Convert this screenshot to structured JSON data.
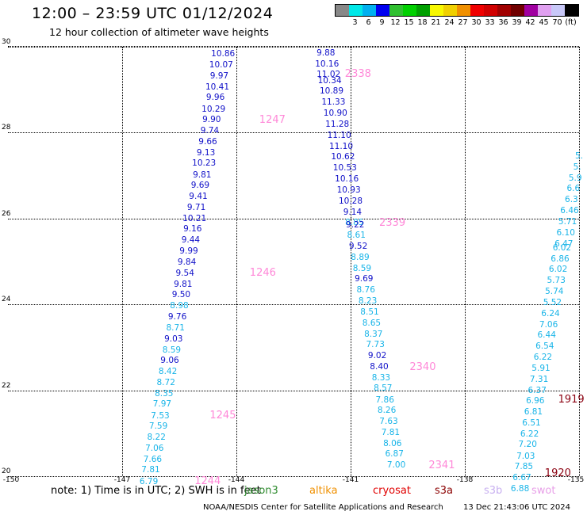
{
  "header": {
    "title": "12:00 – 23:59 UTC 01/12/2024",
    "subtitle": "12 hour collection of altimeter wave heights"
  },
  "scale": {
    "unit": "(ft)",
    "bins": [
      {
        "color": "#888888",
        "label": ""
      },
      {
        "color": "#00e8e8",
        "label": "3"
      },
      {
        "color": "#00b0f0",
        "label": "6"
      },
      {
        "color": "#0000f0",
        "label": "9"
      },
      {
        "color": "#30c030",
        "label": "12"
      },
      {
        "color": "#00d000",
        "label": "15"
      },
      {
        "color": "#00a000",
        "label": "18"
      },
      {
        "color": "#f8f800",
        "label": "21"
      },
      {
        "color": "#f0d000",
        "label": "24"
      },
      {
        "color": "#f09000",
        "label": "27"
      },
      {
        "color": "#f00000",
        "label": "30"
      },
      {
        "color": "#d00000",
        "label": "33"
      },
      {
        "color": "#a00000",
        "label": "36"
      },
      {
        "color": "#700000",
        "label": "39"
      },
      {
        "color": "#a000a0",
        "label": "42"
      },
      {
        "color": "#e0a0f0",
        "label": "45"
      },
      {
        "color": "#c8c8f8",
        "label": "70"
      },
      {
        "color": "#000000",
        "label": "(ft)"
      }
    ]
  },
  "map": {
    "lon_range": [
      -150,
      -135
    ],
    "lat_range": [
      20,
      30
    ],
    "lon_ticks": [
      "-150",
      "-147",
      "-144",
      "-141",
      "-138",
      "-135"
    ],
    "lat_ticks": [
      "20",
      "22",
      "24",
      "26",
      "28",
      "30"
    ],
    "tracks": [
      {
        "points": [
          {
            "lon": -144.35,
            "lat": 29.83,
            "v": "10.86",
            "c": "blue"
          },
          {
            "lon": -144.4,
            "lat": 29.57,
            "v": "10.07",
            "c": "blue"
          },
          {
            "lon": -144.45,
            "lat": 29.32,
            "v": "9.97",
            "c": "blue"
          },
          {
            "lon": -144.5,
            "lat": 29.06,
            "v": "10.41",
            "c": "blue"
          },
          {
            "lon": -144.55,
            "lat": 28.81,
            "v": "9.96",
            "c": "blue"
          },
          {
            "lon": -144.6,
            "lat": 28.55,
            "v": "10.29",
            "c": "blue"
          },
          {
            "lon": -144.65,
            "lat": 28.3,
            "v": "9.90",
            "c": "blue"
          },
          {
            "lon": -144.7,
            "lat": 28.04,
            "v": "9.74",
            "c": "blue"
          },
          {
            "lon": -144.75,
            "lat": 27.79,
            "v": "9.66",
            "c": "blue"
          },
          {
            "lon": -144.8,
            "lat": 27.53,
            "v": "9.13",
            "c": "blue"
          },
          {
            "lon": -144.85,
            "lat": 27.28,
            "v": "10.23",
            "c": "blue"
          },
          {
            "lon": -144.9,
            "lat": 27.02,
            "v": "9.81",
            "c": "blue"
          },
          {
            "lon": -144.95,
            "lat": 26.77,
            "v": "9.69",
            "c": "blue"
          },
          {
            "lon": -145.0,
            "lat": 26.51,
            "v": "9.41",
            "c": "blue"
          },
          {
            "lon": -145.05,
            "lat": 26.26,
            "v": "9.71",
            "c": "blue"
          },
          {
            "lon": -145.1,
            "lat": 26.0,
            "v": "10.21",
            "c": "blue"
          },
          {
            "lon": -145.15,
            "lat": 25.75,
            "v": "9.16",
            "c": "blue"
          },
          {
            "lon": -145.2,
            "lat": 25.49,
            "v": "9.44",
            "c": "blue"
          },
          {
            "lon": -145.25,
            "lat": 25.24,
            "v": "9.99",
            "c": "blue"
          },
          {
            "lon": -145.3,
            "lat": 24.98,
            "v": "9.84",
            "c": "blue"
          },
          {
            "lon": -145.35,
            "lat": 24.73,
            "v": "9.54",
            "c": "blue"
          },
          {
            "lon": -145.4,
            "lat": 24.47,
            "v": "9.81",
            "c": "blue"
          },
          {
            "lon": -145.45,
            "lat": 24.22,
            "v": "9.50",
            "c": "blue"
          },
          {
            "lon": -145.5,
            "lat": 23.96,
            "v": "8.98",
            "c": "cyan"
          },
          {
            "lon": -145.55,
            "lat": 23.71,
            "v": "9.76",
            "c": "blue"
          },
          {
            "lon": -145.6,
            "lat": 23.45,
            "v": "8.71",
            "c": "cyan"
          },
          {
            "lon": -145.65,
            "lat": 23.2,
            "v": "9.03",
            "c": "blue"
          },
          {
            "lon": -145.7,
            "lat": 22.94,
            "v": "8.59",
            "c": "cyan"
          },
          {
            "lon": -145.75,
            "lat": 22.69,
            "v": "9.06",
            "c": "blue"
          },
          {
            "lon": -145.8,
            "lat": 22.43,
            "v": "8.42",
            "c": "cyan"
          },
          {
            "lon": -145.85,
            "lat": 22.18,
            "v": "8.72",
            "c": "cyan"
          },
          {
            "lon": -145.9,
            "lat": 21.92,
            "v": "8.35",
            "c": "cyan"
          },
          {
            "lon": -145.95,
            "lat": 21.67,
            "v": "7.97",
            "c": "cyan"
          },
          {
            "lon": -146.0,
            "lat": 21.41,
            "v": "7.53",
            "c": "cyan"
          },
          {
            "lon": -146.05,
            "lat": 21.16,
            "v": "7.59",
            "c": "cyan"
          },
          {
            "lon": -146.1,
            "lat": 20.9,
            "v": "8.22",
            "c": "cyan"
          },
          {
            "lon": -146.15,
            "lat": 20.65,
            "v": "7.06",
            "c": "cyan"
          },
          {
            "lon": -146.2,
            "lat": 20.39,
            "v": "7.66",
            "c": "cyan"
          },
          {
            "lon": -146.25,
            "lat": 20.14,
            "v": "7.81",
            "c": "cyan"
          },
          {
            "lon": -146.3,
            "lat": 19.88,
            "v": "6.79",
            "c": "cyan"
          }
        ]
      },
      {
        "points": [
          {
            "lon": -141.65,
            "lat": 29.85,
            "v": "9.88",
            "c": "blue"
          },
          {
            "lon": -141.62,
            "lat": 29.6,
            "v": "10.16",
            "c": "blue"
          },
          {
            "lon": -141.58,
            "lat": 29.36,
            "v": "11.02",
            "c": "blue"
          },
          {
            "lon": -141.55,
            "lat": 29.21,
            "v": "10.34",
            "c": "blue"
          },
          {
            "lon": -141.5,
            "lat": 28.96,
            "v": "10.89",
            "c": "blue"
          },
          {
            "lon": -141.45,
            "lat": 28.7,
            "v": "11.33",
            "c": "blue"
          },
          {
            "lon": -141.4,
            "lat": 28.45,
            "v": "10.90",
            "c": "blue"
          },
          {
            "lon": -141.35,
            "lat": 28.19,
            "v": "11.28",
            "c": "blue"
          },
          {
            "lon": -141.3,
            "lat": 27.94,
            "v": "11.10",
            "c": "blue"
          },
          {
            "lon": -141.25,
            "lat": 27.68,
            "v": "11.10",
            "c": "blue"
          },
          {
            "lon": -141.2,
            "lat": 27.43,
            "v": "10.62",
            "c": "blue"
          },
          {
            "lon": -141.15,
            "lat": 27.17,
            "v": "10.53",
            "c": "blue"
          },
          {
            "lon": -141.1,
            "lat": 26.92,
            "v": "10.16",
            "c": "blue"
          },
          {
            "lon": -141.05,
            "lat": 26.66,
            "v": "10.93",
            "c": "blue"
          },
          {
            "lon": -141.0,
            "lat": 26.41,
            "v": "10.28",
            "c": "blue"
          },
          {
            "lon": -140.95,
            "lat": 26.15,
            "v": "9.14",
            "c": "blue"
          },
          {
            "lon": -140.9,
            "lat": 25.9,
            "v": "8.85",
            "c": "cyan"
          },
          {
            "lon": -140.88,
            "lat": 25.85,
            "v": "9.22",
            "c": "blue"
          },
          {
            "lon": -140.85,
            "lat": 25.61,
            "v": "8.61",
            "c": "cyan"
          },
          {
            "lon": -140.8,
            "lat": 25.35,
            "v": "9.52",
            "c": "blue"
          },
          {
            "lon": -140.75,
            "lat": 25.1,
            "v": "8.89",
            "c": "cyan"
          },
          {
            "lon": -140.7,
            "lat": 24.84,
            "v": "8.59",
            "c": "cyan"
          },
          {
            "lon": -140.65,
            "lat": 24.59,
            "v": "9.69",
            "c": "blue"
          },
          {
            "lon": -140.6,
            "lat": 24.33,
            "v": "8.76",
            "c": "cyan"
          },
          {
            "lon": -140.55,
            "lat": 24.08,
            "v": "8.23",
            "c": "cyan"
          },
          {
            "lon": -140.5,
            "lat": 23.82,
            "v": "8.51",
            "c": "cyan"
          },
          {
            "lon": -140.45,
            "lat": 23.57,
            "v": "8.65",
            "c": "cyan"
          },
          {
            "lon": -140.4,
            "lat": 23.31,
            "v": "8.37",
            "c": "cyan"
          },
          {
            "lon": -140.35,
            "lat": 23.06,
            "v": "7.73",
            "c": "cyan"
          },
          {
            "lon": -140.3,
            "lat": 22.8,
            "v": "9.02",
            "c": "blue"
          },
          {
            "lon": -140.25,
            "lat": 22.55,
            "v": "8.40",
            "c": "blue"
          },
          {
            "lon": -140.2,
            "lat": 22.29,
            "v": "8.33",
            "c": "cyan"
          },
          {
            "lon": -140.15,
            "lat": 22.04,
            "v": "8.57",
            "c": "cyan"
          },
          {
            "lon": -140.1,
            "lat": 21.78,
            "v": "7.86",
            "c": "cyan"
          },
          {
            "lon": -140.05,
            "lat": 21.53,
            "v": "8.26",
            "c": "cyan"
          },
          {
            "lon": -140.0,
            "lat": 21.27,
            "v": "7.63",
            "c": "cyan"
          },
          {
            "lon": -139.95,
            "lat": 21.02,
            "v": "7.81",
            "c": "cyan"
          },
          {
            "lon": -139.9,
            "lat": 20.76,
            "v": "8.06",
            "c": "cyan"
          },
          {
            "lon": -139.85,
            "lat": 20.51,
            "v": "6.87",
            "c": "cyan"
          },
          {
            "lon": -139.8,
            "lat": 20.25,
            "v": "7.00",
            "c": "cyan"
          }
        ]
      },
      {
        "points": [
          {
            "lon": -135.0,
            "lat": 27.45,
            "v": "5.",
            "c": "cyan"
          },
          {
            "lon": -135.05,
            "lat": 27.2,
            "v": "5.",
            "c": "cyan"
          },
          {
            "lon": -135.1,
            "lat": 26.94,
            "v": "5.9",
            "c": "cyan"
          },
          {
            "lon": -135.15,
            "lat": 26.69,
            "v": "6.6",
            "c": "cyan"
          },
          {
            "lon": -135.2,
            "lat": 26.43,
            "v": "6.3",
            "c": "cyan"
          },
          {
            "lon": -135.25,
            "lat": 26.18,
            "v": "6.46",
            "c": "cyan"
          },
          {
            "lon": -135.3,
            "lat": 25.92,
            "v": "5.71",
            "c": "cyan"
          },
          {
            "lon": -135.35,
            "lat": 25.67,
            "v": "6.10",
            "c": "cyan"
          },
          {
            "lon": -135.4,
            "lat": 25.41,
            "v": "6.47",
            "c": "cyan"
          },
          {
            "lon": -135.45,
            "lat": 25.32,
            "v": "6.02",
            "c": "cyan"
          },
          {
            "lon": -135.5,
            "lat": 25.06,
            "v": "6.86",
            "c": "cyan"
          },
          {
            "lon": -135.55,
            "lat": 24.81,
            "v": "6.02",
            "c": "cyan"
          },
          {
            "lon": -135.6,
            "lat": 24.55,
            "v": "5.73",
            "c": "cyan"
          },
          {
            "lon": -135.65,
            "lat": 24.3,
            "v": "5.74",
            "c": "cyan"
          },
          {
            "lon": -135.7,
            "lat": 24.04,
            "v": "5.52",
            "c": "cyan"
          },
          {
            "lon": -135.75,
            "lat": 23.79,
            "v": "6.24",
            "c": "cyan"
          },
          {
            "lon": -135.8,
            "lat": 23.53,
            "v": "7.06",
            "c": "cyan"
          },
          {
            "lon": -135.85,
            "lat": 23.28,
            "v": "6.44",
            "c": "cyan"
          },
          {
            "lon": -135.9,
            "lat": 23.02,
            "v": "6.54",
            "c": "cyan"
          },
          {
            "lon": -135.95,
            "lat": 22.77,
            "v": "6.22",
            "c": "cyan"
          },
          {
            "lon": -136.0,
            "lat": 22.51,
            "v": "5.91",
            "c": "cyan"
          },
          {
            "lon": -136.05,
            "lat": 22.26,
            "v": "7.31",
            "c": "cyan"
          },
          {
            "lon": -136.1,
            "lat": 22.0,
            "v": "6.37",
            "c": "cyan"
          },
          {
            "lon": -136.15,
            "lat": 21.75,
            "v": "6.96",
            "c": "cyan"
          },
          {
            "lon": -136.2,
            "lat": 21.49,
            "v": "6.81",
            "c": "cyan"
          },
          {
            "lon": -136.25,
            "lat": 21.24,
            "v": "6.51",
            "c": "cyan"
          },
          {
            "lon": -136.3,
            "lat": 20.98,
            "v": "6.22",
            "c": "cyan"
          },
          {
            "lon": -136.35,
            "lat": 20.73,
            "v": "7.20",
            "c": "cyan"
          },
          {
            "lon": -136.4,
            "lat": 20.47,
            "v": "7.03",
            "c": "cyan"
          },
          {
            "lon": -136.45,
            "lat": 20.22,
            "v": "7.85",
            "c": "cyan"
          },
          {
            "lon": -136.5,
            "lat": 19.96,
            "v": "6.67",
            "c": "cyan"
          },
          {
            "lon": -136.55,
            "lat": 19.71,
            "v": "6.88",
            "c": "cyan"
          }
        ]
      }
    ],
    "pass_labels": [
      {
        "text": "2338",
        "lon": -141.15,
        "lat": 29.35,
        "color": "pink"
      },
      {
        "text": "1247",
        "lon": -143.4,
        "lat": 28.28,
        "color": "pink"
      },
      {
        "text": "2339",
        "lon": -140.25,
        "lat": 25.88,
        "color": "pink"
      },
      {
        "text": "1246",
        "lon": -143.65,
        "lat": 24.73,
        "color": "pink"
      },
      {
        "text": "2340",
        "lon": -139.45,
        "lat": 22.52,
        "color": "pink"
      },
      {
        "text": "1245",
        "lon": -144.7,
        "lat": 21.4,
        "color": "pink"
      },
      {
        "text": "1919",
        "lon": -135.55,
        "lat": 21.78,
        "color": "maroon"
      },
      {
        "text": "2341",
        "lon": -138.95,
        "lat": 20.24,
        "color": "pink"
      },
      {
        "text": "1244",
        "lon": -145.1,
        "lat": 19.88,
        "color": "pink"
      },
      {
        "text": "1920",
        "lon": -135.9,
        "lat": 20.06,
        "color": "maroon"
      }
    ]
  },
  "note": {
    "text": "note:  1) Time is in UTC;  2) SWH is in feet"
  },
  "legend": [
    {
      "label": "jason3",
      "color": "#2e8b2e"
    },
    {
      "label": "altika",
      "color": "#f09000"
    },
    {
      "label": "cryosat",
      "color": "#e00000"
    },
    {
      "label": "s3a",
      "color": "#8b0000"
    },
    {
      "label": "s3b",
      "color": "#c8b0f0"
    },
    {
      "label": "swot",
      "color": "#e8a0e8"
    }
  ],
  "footer": {
    "credit": "NOAA/NESDIS Center for Satellite Applications and Research",
    "timestamp": "13 Dec 21:43:06 UTC 2024"
  }
}
